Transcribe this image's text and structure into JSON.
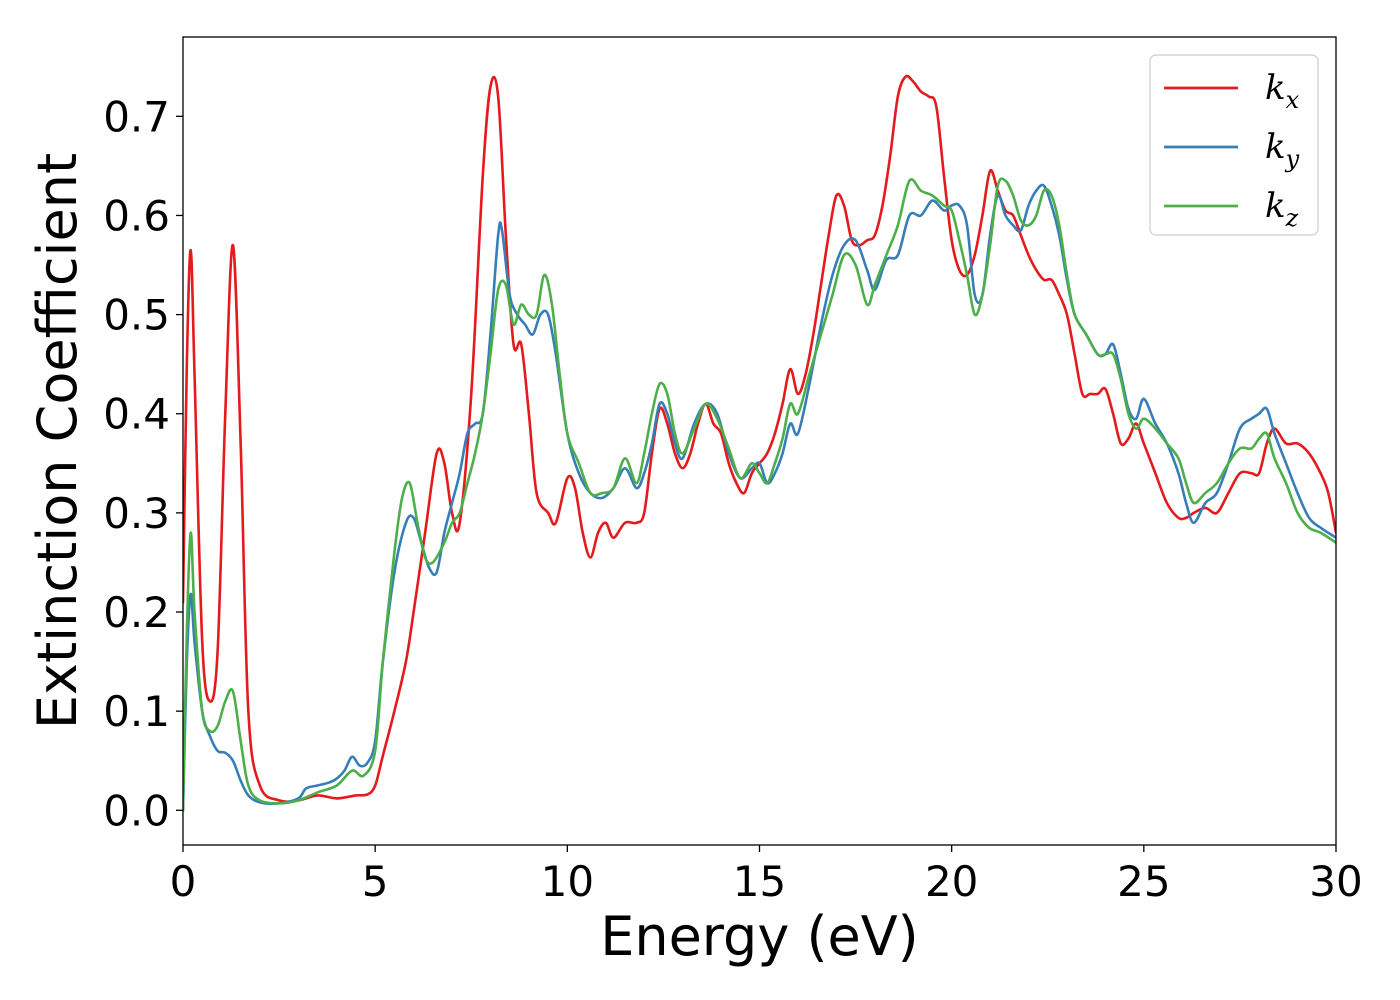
{
  "chart_data": {
    "type": "line",
    "title": "",
    "xlabel": "Energy (eV)",
    "ylabel": "Extinction Coefficient",
    "xlim": [
      0,
      30
    ],
    "ylim": [
      -0.035,
      0.78
    ],
    "xticks": [
      0,
      5,
      10,
      15,
      20,
      25,
      30
    ],
    "xtick_labels": [
      "0",
      "5",
      "10",
      "15",
      "20",
      "25",
      "30"
    ],
    "yticks": [
      0.0,
      0.1,
      0.2,
      0.3,
      0.4,
      0.5,
      0.6,
      0.7
    ],
    "ytick_labels": [
      "0.0",
      "0.1",
      "0.2",
      "0.3",
      "0.4",
      "0.5",
      "0.6",
      "0.7"
    ],
    "grid": false,
    "legend": "top-right",
    "series": [
      {
        "name": "k",
        "subscript": "x",
        "color": "#e41a1c",
        "x": [
          0,
          0.1,
          0.2,
          0.3,
          0.5,
          0.7,
          0.9,
          1.1,
          1.3,
          1.5,
          1.7,
          2.0,
          2.5,
          3.0,
          3.5,
          4.0,
          4.5,
          4.8,
          5.0,
          5.2,
          5.5,
          5.8,
          6.0,
          6.3,
          6.6,
          6.8,
          7.0,
          7.2,
          7.5,
          7.8,
          8.0,
          8.2,
          8.4,
          8.6,
          8.8,
          9.0,
          9.2,
          9.5,
          9.7,
          10.0,
          10.2,
          10.4,
          10.6,
          10.8,
          11.0,
          11.2,
          11.5,
          11.8,
          12.0,
          12.2,
          12.4,
          12.6,
          12.8,
          13.0,
          13.2,
          13.4,
          13.6,
          13.8,
          14.0,
          14.2,
          14.4,
          14.6,
          14.8,
          15.0,
          15.2,
          15.4,
          15.6,
          15.8,
          16.0,
          16.2,
          16.4,
          16.6,
          16.8,
          17.0,
          17.2,
          17.4,
          17.6,
          17.8,
          18.0,
          18.2,
          18.4,
          18.6,
          18.8,
          19.0,
          19.2,
          19.4,
          19.6,
          19.8,
          20.0,
          20.2,
          20.4,
          20.6,
          20.8,
          21.0,
          21.2,
          21.4,
          21.6,
          21.8,
          22.0,
          22.2,
          22.4,
          22.6,
          22.8,
          23.0,
          23.2,
          23.4,
          23.6,
          23.8,
          24.0,
          24.2,
          24.4,
          24.6,
          24.8,
          25.0,
          25.3,
          25.6,
          25.9,
          26.1,
          26.3,
          26.6,
          26.9,
          27.2,
          27.5,
          27.8,
          28.0,
          28.2,
          28.4,
          28.7,
          29.0,
          29.3,
          29.6,
          29.8,
          30.0
        ],
        "y": [
          0.21,
          0.45,
          0.565,
          0.44,
          0.17,
          0.11,
          0.16,
          0.4,
          0.57,
          0.37,
          0.1,
          0.025,
          0.01,
          0.01,
          0.015,
          0.012,
          0.015,
          0.016,
          0.025,
          0.055,
          0.1,
          0.15,
          0.2,
          0.28,
          0.36,
          0.35,
          0.3,
          0.29,
          0.42,
          0.64,
          0.73,
          0.72,
          0.58,
          0.47,
          0.47,
          0.4,
          0.32,
          0.3,
          0.29,
          0.335,
          0.325,
          0.28,
          0.255,
          0.28,
          0.29,
          0.275,
          0.29,
          0.29,
          0.3,
          0.36,
          0.405,
          0.39,
          0.36,
          0.345,
          0.36,
          0.39,
          0.41,
          0.39,
          0.38,
          0.35,
          0.33,
          0.32,
          0.34,
          0.35,
          0.36,
          0.38,
          0.41,
          0.445,
          0.42,
          0.44,
          0.48,
          0.53,
          0.58,
          0.62,
          0.61,
          0.575,
          0.57,
          0.575,
          0.58,
          0.61,
          0.66,
          0.72,
          0.74,
          0.735,
          0.725,
          0.72,
          0.71,
          0.64,
          0.575,
          0.545,
          0.54,
          0.56,
          0.6,
          0.645,
          0.625,
          0.605,
          0.6,
          0.58,
          0.56,
          0.545,
          0.535,
          0.535,
          0.52,
          0.5,
          0.46,
          0.42,
          0.42,
          0.42,
          0.425,
          0.4,
          0.37,
          0.375,
          0.39,
          0.37,
          0.34,
          0.31,
          0.295,
          0.295,
          0.3,
          0.305,
          0.3,
          0.32,
          0.34,
          0.34,
          0.34,
          0.37,
          0.385,
          0.37,
          0.37,
          0.36,
          0.34,
          0.32,
          0.28
        ]
      },
      {
        "name": "k",
        "subscript": "y",
        "color": "#377eb8",
        "x": [
          0,
          0.1,
          0.2,
          0.3,
          0.5,
          0.7,
          0.9,
          1.1,
          1.3,
          1.5,
          1.7,
          2.0,
          2.5,
          3.0,
          3.2,
          3.5,
          3.8,
          4.0,
          4.2,
          4.4,
          4.6,
          4.8,
          5.0,
          5.2,
          5.5,
          5.8,
          6.0,
          6.2,
          6.4,
          6.6,
          6.8,
          7.0,
          7.2,
          7.4,
          7.6,
          7.8,
          8.0,
          8.2,
          8.3,
          8.5,
          8.7,
          8.9,
          9.1,
          9.3,
          9.5,
          9.7,
          10.0,
          10.3,
          10.6,
          10.9,
          11.2,
          11.5,
          11.8,
          12.0,
          12.2,
          12.4,
          12.6,
          12.8,
          13.0,
          13.3,
          13.6,
          13.9,
          14.2,
          14.5,
          14.8,
          15.0,
          15.2,
          15.4,
          15.6,
          15.8,
          16.0,
          16.3,
          16.6,
          16.9,
          17.2,
          17.5,
          17.8,
          18.0,
          18.3,
          18.6,
          18.9,
          19.2,
          19.5,
          19.8,
          20.0,
          20.2,
          20.4,
          20.6,
          20.8,
          21.0,
          21.2,
          21.4,
          21.6,
          21.8,
          22.0,
          22.2,
          22.4,
          22.6,
          22.8,
          23.0,
          23.2,
          23.5,
          23.8,
          24.0,
          24.2,
          24.4,
          24.6,
          24.8,
          25.0,
          25.3,
          25.6,
          25.9,
          26.1,
          26.3,
          26.6,
          26.9,
          27.2,
          27.5,
          27.8,
          28.0,
          28.2,
          28.4,
          28.7,
          29.0,
          29.3,
          29.6,
          30.0
        ],
        "y": [
          0.0,
          0.15,
          0.218,
          0.17,
          0.1,
          0.075,
          0.06,
          0.058,
          0.05,
          0.03,
          0.015,
          0.008,
          0.007,
          0.012,
          0.022,
          0.025,
          0.028,
          0.032,
          0.04,
          0.054,
          0.045,
          0.048,
          0.07,
          0.15,
          0.24,
          0.29,
          0.295,
          0.27,
          0.245,
          0.24,
          0.28,
          0.31,
          0.34,
          0.38,
          0.39,
          0.4,
          0.48,
          0.58,
          0.585,
          0.52,
          0.5,
          0.49,
          0.48,
          0.5,
          0.5,
          0.46,
          0.38,
          0.34,
          0.32,
          0.315,
          0.325,
          0.345,
          0.325,
          0.34,
          0.37,
          0.41,
          0.4,
          0.37,
          0.355,
          0.39,
          0.41,
          0.4,
          0.36,
          0.335,
          0.345,
          0.35,
          0.33,
          0.34,
          0.36,
          0.39,
          0.38,
          0.43,
          0.49,
          0.54,
          0.57,
          0.575,
          0.545,
          0.525,
          0.555,
          0.56,
          0.6,
          0.6,
          0.615,
          0.605,
          0.61,
          0.61,
          0.59,
          0.52,
          0.52,
          0.58,
          0.62,
          0.6,
          0.59,
          0.585,
          0.61,
          0.625,
          0.63,
          0.61,
          0.58,
          0.535,
          0.5,
          0.48,
          0.46,
          0.46,
          0.47,
          0.44,
          0.405,
          0.395,
          0.415,
          0.39,
          0.37,
          0.34,
          0.31,
          0.29,
          0.31,
          0.32,
          0.35,
          0.385,
          0.395,
          0.4,
          0.405,
          0.38,
          0.35,
          0.32,
          0.295,
          0.285,
          0.275
        ]
      },
      {
        "name": "k",
        "subscript": "z",
        "color": "#4daf4a",
        "x": [
          0,
          0.1,
          0.2,
          0.3,
          0.5,
          0.7,
          0.9,
          1.1,
          1.3,
          1.5,
          1.7,
          2.0,
          2.5,
          3.0,
          3.5,
          4.0,
          4.4,
          4.7,
          5.0,
          5.2,
          5.5,
          5.7,
          5.9,
          6.1,
          6.3,
          6.5,
          6.8,
          7.0,
          7.2,
          7.4,
          7.6,
          7.8,
          8.0,
          8.2,
          8.4,
          8.6,
          8.8,
          9.0,
          9.2,
          9.4,
          9.6,
          9.8,
          10.0,
          10.3,
          10.6,
          10.9,
          11.2,
          11.5,
          11.8,
          12.0,
          12.2,
          12.4,
          12.6,
          12.8,
          13.0,
          13.3,
          13.6,
          13.9,
          14.2,
          14.5,
          14.8,
          15.0,
          15.2,
          15.4,
          15.6,
          15.8,
          16.0,
          16.3,
          16.6,
          16.9,
          17.2,
          17.5,
          17.8,
          18.0,
          18.3,
          18.6,
          18.9,
          19.2,
          19.5,
          19.8,
          20.0,
          20.2,
          20.4,
          20.6,
          20.8,
          21.0,
          21.2,
          21.4,
          21.6,
          21.8,
          22.0,
          22.2,
          22.4,
          22.6,
          22.8,
          23.0,
          23.2,
          23.5,
          23.8,
          24.0,
          24.2,
          24.4,
          24.6,
          24.8,
          25.0,
          25.3,
          25.6,
          25.9,
          26.1,
          26.3,
          26.6,
          26.9,
          27.2,
          27.5,
          27.8,
          28.0,
          28.2,
          28.4,
          28.7,
          29.0,
          29.3,
          29.6,
          30.0
        ],
        "y": [
          0.0,
          0.18,
          0.28,
          0.2,
          0.1,
          0.08,
          0.085,
          0.11,
          0.12,
          0.07,
          0.025,
          0.01,
          0.007,
          0.01,
          0.018,
          0.025,
          0.04,
          0.035,
          0.06,
          0.15,
          0.26,
          0.315,
          0.33,
          0.29,
          0.255,
          0.25,
          0.27,
          0.29,
          0.3,
          0.33,
          0.36,
          0.4,
          0.46,
          0.525,
          0.53,
          0.49,
          0.51,
          0.5,
          0.5,
          0.54,
          0.51,
          0.44,
          0.38,
          0.35,
          0.32,
          0.32,
          0.325,
          0.355,
          0.33,
          0.36,
          0.4,
          0.43,
          0.42,
          0.38,
          0.36,
          0.385,
          0.41,
          0.395,
          0.365,
          0.335,
          0.35,
          0.34,
          0.33,
          0.35,
          0.375,
          0.41,
          0.4,
          0.44,
          0.48,
          0.52,
          0.56,
          0.55,
          0.51,
          0.53,
          0.56,
          0.59,
          0.635,
          0.625,
          0.62,
          0.61,
          0.605,
          0.575,
          0.54,
          0.5,
          0.52,
          0.57,
          0.63,
          0.635,
          0.62,
          0.595,
          0.59,
          0.6,
          0.625,
          0.62,
          0.59,
          0.54,
          0.5,
          0.48,
          0.46,
          0.46,
          0.46,
          0.435,
          0.4,
          0.385,
          0.395,
          0.385,
          0.37,
          0.355,
          0.33,
          0.31,
          0.32,
          0.33,
          0.35,
          0.365,
          0.365,
          0.375,
          0.38,
          0.355,
          0.33,
          0.3,
          0.285,
          0.28,
          0.27
        ]
      }
    ]
  }
}
